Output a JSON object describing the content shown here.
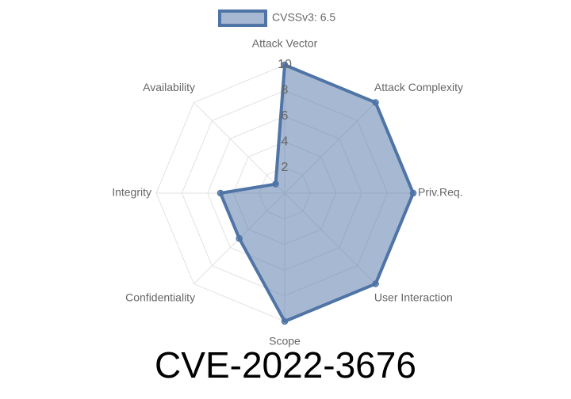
{
  "chart_data": {
    "type": "radar",
    "title": "CVE-2022-3676",
    "categories": [
      "Attack Vector",
      "Attack Complexity",
      "Priv.Req.",
      "User Interaction",
      "Scope",
      "Confidentiality",
      "Integrity",
      "Availability"
    ],
    "series": [
      {
        "name": "CVSSv3: 6.5",
        "color": "#4f74a6",
        "values": [
          10,
          10,
          10,
          10,
          10,
          5,
          5,
          1
        ]
      }
    ],
    "ylim": [
      0,
      10
    ],
    "yticks": [
      2,
      4,
      6,
      8,
      10
    ],
    "grid": true,
    "legend": "top"
  }
}
